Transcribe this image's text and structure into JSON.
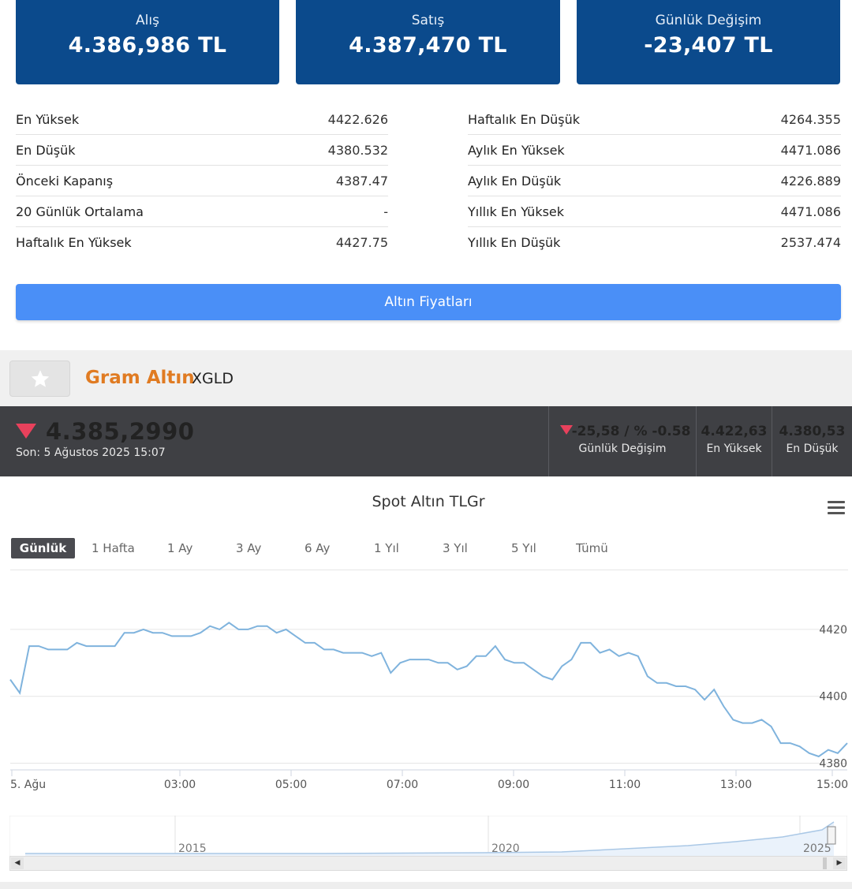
{
  "cards": [
    {
      "label": "Alış",
      "value": "4.386,986 TL"
    },
    {
      "label": "Satış",
      "value": "4.387,470 TL"
    },
    {
      "label": "Günlük Değişim",
      "value": "-23,407 TL"
    }
  ],
  "stats_left": [
    {
      "label": "En Yüksek",
      "value": "4422.626"
    },
    {
      "label": "En Düşük",
      "value": "4380.532"
    },
    {
      "label": "Önceki Kapanış",
      "value": "4387.47"
    },
    {
      "label": "20 Günlük Ortalama",
      "value": "-"
    },
    {
      "label": "Haftalık En Yüksek",
      "value": "4427.75"
    }
  ],
  "stats_right": [
    {
      "label": "Haftalık En Düşük",
      "value": "4264.355"
    },
    {
      "label": "Aylık En Yüksek",
      "value": "4471.086"
    },
    {
      "label": "Aylık En Düşük",
      "value": "4226.889"
    },
    {
      "label": "Yıllık En Yüksek",
      "value": "4471.086"
    },
    {
      "label": "Yıllık En Düşük",
      "value": "2537.474"
    }
  ],
  "cta_label": "Altın Fiyatları",
  "asset": {
    "name": "Gram Altın",
    "code": "XGLD",
    "favorite_icon": "star-icon"
  },
  "ticker": {
    "price": "4.385,2990",
    "updated": "Son: 5 Ağustos 2025 15:07",
    "change": "-25,58 / % -0.58",
    "change_label": "Günlük Değişim",
    "high": "4.422,63",
    "high_label": "En Yüksek",
    "low": "4.380,53",
    "low_label": "En Düşük",
    "direction_icon": "triangle-down-icon",
    "down_color": "#e8415c"
  },
  "colors": {
    "card_bg": "#0b4a8c",
    "cta_bg": "#4a8ff7",
    "asset_name": "#e07b22",
    "ticker_bg": "#3f4044",
    "line": "#7fb3dd"
  },
  "ranges": [
    "Günlük",
    "1 Hafta",
    "1 Ay",
    "3 Ay",
    "6 Ay",
    "1 Yıl",
    "3 Yıl",
    "5 Yıl",
    "Tümü"
  ],
  "selected_range": "Günlük",
  "chart_data": {
    "type": "line",
    "title": "Spot Altın TLGr",
    "x_tick_labels": [
      "5. Ağu",
      "03:00",
      "05:00",
      "07:00",
      "09:00",
      "11:00",
      "13:00",
      "15:00"
    ],
    "y_tick_labels": [
      "4420",
      "4400",
      "4380"
    ],
    "ylim": [
      4378,
      4428
    ],
    "grid": true,
    "series": [
      {
        "values": [
          4405,
          4401,
          4415,
          4415,
          4414,
          4414,
          4414,
          4416,
          4415,
          4415,
          4415,
          4415,
          4419,
          4419,
          4420,
          4419,
          4419,
          4418,
          4418,
          4418,
          4419,
          4421,
          4420,
          4422,
          4420,
          4420,
          4421,
          4421,
          4419,
          4420,
          4418,
          4416,
          4416,
          4414,
          4414,
          4413,
          4413,
          4413,
          4412,
          4413,
          4407,
          4410,
          4411,
          4411,
          4411,
          4410,
          4410,
          4408,
          4409,
          4412,
          4412,
          4415,
          4411,
          4410,
          4410,
          4408,
          4406,
          4405,
          4409,
          4411,
          4416,
          4416,
          4413,
          4414,
          4412,
          4413,
          4412,
          4406,
          4404,
          4404,
          4403,
          4403,
          4402,
          4399,
          4402,
          4397,
          4393,
          4392,
          4392,
          4393,
          4391,
          4386,
          4386,
          4385,
          4383,
          4382,
          4384,
          4383,
          4386
        ]
      }
    ],
    "navigator_labels": [
      "2015",
      "2020",
      "2025"
    ]
  }
}
